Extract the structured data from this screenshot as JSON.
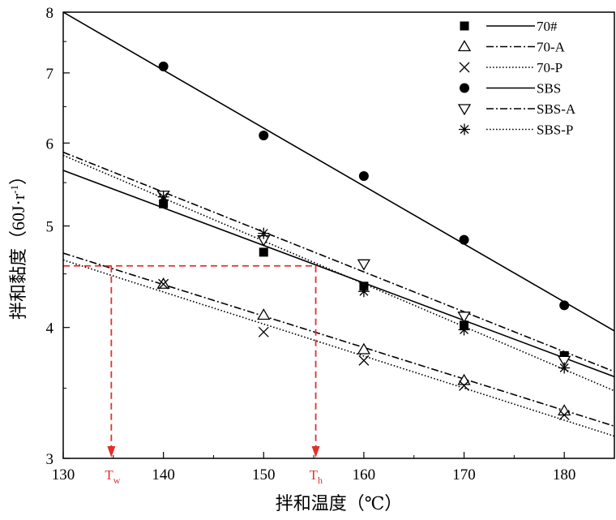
{
  "chart_data": {
    "type": "scatter",
    "yscale": "log",
    "xlabel": "拌和温度（℃）",
    "ylabel_main": "拌和黏度（60J·r",
    "ylabel_exp": "-1",
    "ylabel_close": "）",
    "xlim": [
      130,
      185
    ],
    "ylim": [
      3,
      8
    ],
    "x_ticks": [
      130,
      140,
      150,
      160,
      170,
      180
    ],
    "y_ticks": [
      3,
      4,
      5,
      6,
      7,
      8
    ],
    "series": [
      {
        "name": "70#",
        "marker": "square-filled",
        "line": "solid",
        "x": [
          140,
          150,
          160,
          170,
          180
        ],
        "y": [
          5.25,
          4.72,
          4.38,
          4.02,
          3.76
        ],
        "fit": {
          "x": [
            130,
            185
          ],
          "y": [
            5.65,
            3.59
          ]
        }
      },
      {
        "name": "70-A",
        "marker": "triangle-up-open",
        "line": "dashdot",
        "x": [
          140,
          150,
          160,
          170,
          180
        ],
        "y": [
          4.4,
          4.11,
          3.81,
          3.56,
          3.33
        ],
        "fit": {
          "x": [
            130,
            185
          ],
          "y": [
            4.71,
            3.22
          ]
        }
      },
      {
        "name": "70-P",
        "marker": "x-cross",
        "line": "dotted",
        "x": [
          140,
          150,
          160,
          170,
          180
        ],
        "y": [
          4.4,
          3.96,
          3.72,
          3.52,
          3.3
        ],
        "fit": {
          "x": [
            130,
            185
          ],
          "y": [
            4.64,
            3.15
          ]
        }
      },
      {
        "name": "SBS",
        "marker": "circle-filled",
        "line": "solid",
        "x": [
          140,
          150,
          160,
          170,
          180
        ],
        "y": [
          7.1,
          6.1,
          5.58,
          4.85,
          4.2
        ],
        "fit": {
          "x": [
            130,
            185
          ],
          "y": [
            8.0,
            3.97
          ]
        }
      },
      {
        "name": "SBS-A",
        "marker": "triangle-down-open",
        "line": "dashdot",
        "x": [
          140,
          150,
          160,
          170,
          180
        ],
        "y": [
          5.35,
          4.85,
          4.6,
          4.1,
          3.72
        ],
        "fit": {
          "x": [
            130,
            185
          ],
          "y": [
            5.88,
            3.63
          ]
        }
      },
      {
        "name": "SBS-P",
        "marker": "asterisk",
        "line": "dotted",
        "x": [
          140,
          150,
          160,
          170,
          180
        ],
        "y": [
          5.33,
          4.92,
          4.33,
          3.98,
          3.66
        ],
        "fit": {
          "x": [
            130,
            185
          ],
          "y": [
            5.84,
            3.48
          ]
        }
      }
    ],
    "annotations": {
      "y_level": 4.58,
      "tw_x": 134.8,
      "th_x": 155.2,
      "tw_label": "T",
      "tw_sub": "w",
      "th_label": "T",
      "th_sub": "h",
      "color": "#e03030"
    },
    "legend_position": "top-right"
  }
}
